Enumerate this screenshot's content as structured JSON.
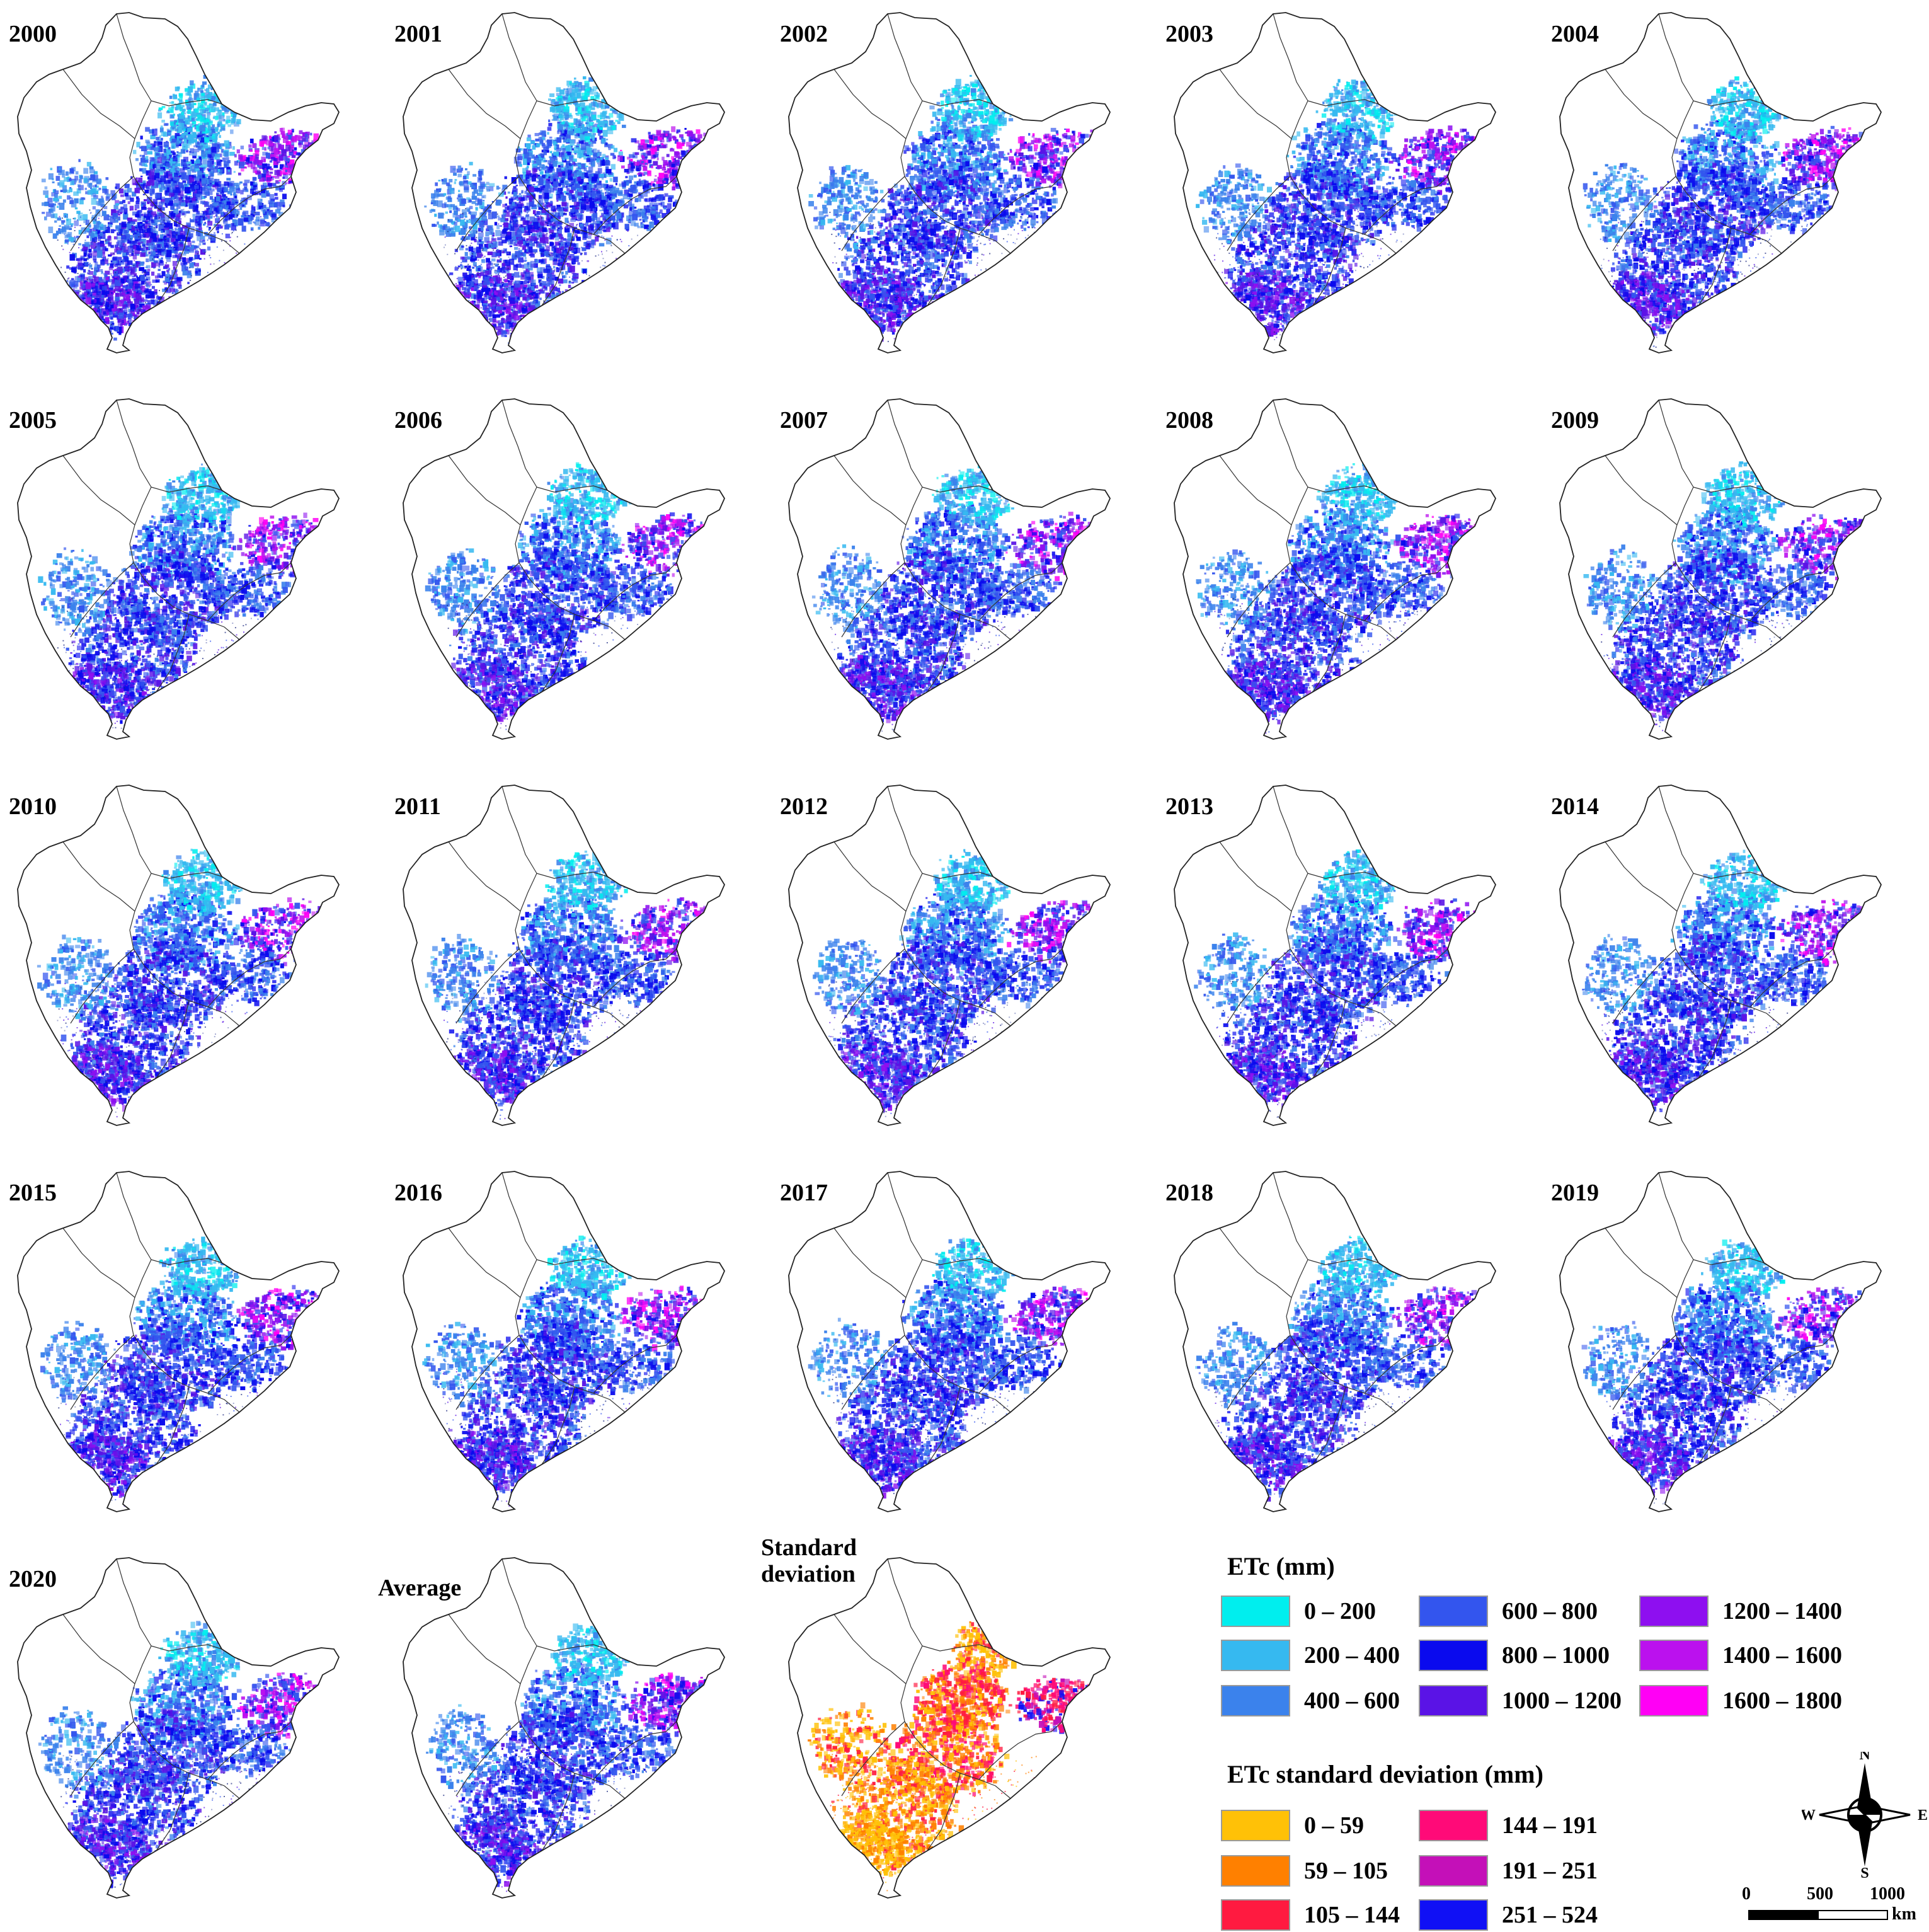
{
  "panels": [
    {
      "label": "2000",
      "palette": "etc"
    },
    {
      "label": "2001",
      "palette": "etc"
    },
    {
      "label": "2002",
      "palette": "etc"
    },
    {
      "label": "2003",
      "palette": "etc"
    },
    {
      "label": "2004",
      "palette": "etc"
    },
    {
      "label": "2005",
      "palette": "etc"
    },
    {
      "label": "2006",
      "palette": "etc"
    },
    {
      "label": "2007",
      "palette": "etc"
    },
    {
      "label": "2008",
      "palette": "etc"
    },
    {
      "label": "2009",
      "palette": "etc"
    },
    {
      "label": "2010",
      "palette": "etc"
    },
    {
      "label": "2011",
      "palette": "etc"
    },
    {
      "label": "2012",
      "palette": "etc"
    },
    {
      "label": "2013",
      "palette": "etc"
    },
    {
      "label": "2014",
      "palette": "etc"
    },
    {
      "label": "2015",
      "palette": "etc"
    },
    {
      "label": "2016",
      "palette": "etc"
    },
    {
      "label": "2017",
      "palette": "etc"
    },
    {
      "label": "2018",
      "palette": "etc"
    },
    {
      "label": "2019",
      "palette": "etc"
    },
    {
      "label": "2020",
      "palette": "etc"
    },
    {
      "label": "Average",
      "palette": "etc"
    },
    {
      "label": "Standard\ndeviation",
      "palette": "sd"
    }
  ],
  "legend_etc": {
    "title": "ETc (mm)",
    "items": [
      {
        "label": "0 – 200",
        "color": "#00eeee"
      },
      {
        "label": "200 – 400",
        "color": "#36b9f0"
      },
      {
        "label": "400 – 600",
        "color": "#3b82ec"
      },
      {
        "label": "600 – 800",
        "color": "#3355ee"
      },
      {
        "label": "800 – 1000",
        "color": "#0a0aee"
      },
      {
        "label": "1000 – 1200",
        "color": "#5a13e6"
      },
      {
        "label": "1200 – 1400",
        "color": "#8e0ff0"
      },
      {
        "label": "1400 – 1600",
        "color": "#bb11ee"
      },
      {
        "label": "1600 – 1800",
        "color": "#ff00f5"
      }
    ]
  },
  "legend_sd": {
    "title": "ETc standard deviation (mm)",
    "items": [
      {
        "label": "0 – 59",
        "color": "#ffc107"
      },
      {
        "label": "59 – 105",
        "color": "#ff8000"
      },
      {
        "label": "105 – 144",
        "color": "#ff1a40"
      },
      {
        "label": "144 – 191",
        "color": "#ff0a78"
      },
      {
        "label": "191 – 251",
        "color": "#c410b8"
      },
      {
        "label": "251 – 524",
        "color": "#1010f5"
      }
    ]
  },
  "compass": {
    "n": "N",
    "s": "S",
    "e": "E",
    "w": "W"
  },
  "scale": {
    "ticks": [
      "0",
      "500",
      "1000"
    ],
    "unit": "km"
  }
}
